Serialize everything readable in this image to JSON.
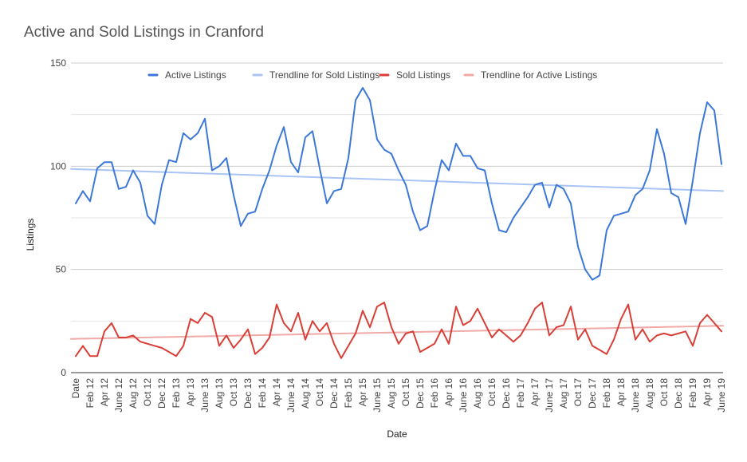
{
  "chart_data": {
    "type": "line",
    "title": "Active and Sold Listings in Cranford",
    "xlabel": "Date",
    "ylabel": "Listings",
    "ylim": [
      0,
      150
    ],
    "yticks": [
      0,
      50,
      100,
      150
    ],
    "grid": true,
    "legend_position": "top",
    "legend": [
      "Active Listings",
      "Trendline for Sold Listings",
      "Sold Listings",
      "Trendline for Active Listings"
    ],
    "x_tick_labels": [
      "Date",
      "Feb 12",
      "Apr 12",
      "June 12",
      "Aug 12",
      "Oct 12",
      "Dec 12",
      "Feb 13",
      "Apr 13",
      "June 13",
      "Aug 13",
      "Oct 13",
      "Dec 13",
      "Feb 14",
      "Apr 14",
      "June 14",
      "Aug 14",
      "Oct 14",
      "Dec 14",
      "Feb 15",
      "Apr 15",
      "June 15",
      "Aug 15",
      "Oct 15",
      "Dec 15",
      "Feb 16",
      "Apr 16",
      "June 16",
      "Aug 16",
      "Oct 16",
      "Dec 16",
      "Feb 17",
      "Apr 17",
      "June 17",
      "Aug 17",
      "Oct 17",
      "Dec 17",
      "Feb 18",
      "Apr 18",
      "June 18",
      "Aug 18",
      "Oct 18",
      "Dec 18",
      "Feb 19",
      "Apr 19",
      "June 19"
    ],
    "series": [
      {
        "name": "Active Listings",
        "color": "#3c78d8",
        "values": [
          82,
          88,
          83,
          99,
          102,
          102,
          89,
          90,
          98,
          92,
          76,
          72,
          91,
          103,
          102,
          116,
          113,
          116,
          123,
          98,
          100,
          104,
          86,
          71,
          77,
          78,
          89,
          98,
          110,
          119,
          102,
          97,
          114,
          117,
          99,
          82,
          88,
          89,
          104,
          132,
          138,
          132,
          113,
          108,
          106,
          98,
          91,
          78,
          69,
          71,
          88,
          103,
          98,
          111,
          105,
          105,
          99,
          98,
          82,
          69,
          68,
          75,
          80,
          85,
          91,
          92,
          80,
          91,
          89,
          82,
          61,
          50,
          45,
          47,
          69,
          76,
          77,
          78,
          86,
          89,
          98,
          118,
          106,
          87,
          85,
          72,
          93,
          116,
          131,
          127,
          101
        ]
      },
      {
        "name": "Sold Listings",
        "color": "#d93f36",
        "values": [
          8,
          13,
          8,
          8,
          20,
          24,
          17,
          17,
          18,
          15,
          14,
          13,
          12,
          10,
          8,
          13,
          26,
          24,
          29,
          27,
          13,
          18,
          12,
          16,
          21,
          9,
          12,
          17,
          33,
          24,
          20,
          29,
          16,
          25,
          20,
          24,
          14,
          7,
          13,
          19,
          30,
          22,
          32,
          34,
          22,
          14,
          19,
          20,
          10,
          12,
          14,
          21,
          14,
          32,
          23,
          25,
          31,
          24,
          17,
          21,
          18,
          15,
          18,
          24,
          31,
          34,
          18,
          22,
          23,
          32,
          16,
          21,
          13,
          11,
          9,
          16,
          26,
          33,
          16,
          21,
          15,
          18,
          19,
          18,
          19,
          20,
          13,
          24,
          28,
          24,
          20
        ]
      },
      {
        "name": "Trendline for Sold Listings",
        "color": "#a9c4f5",
        "values": [
          98.7,
          88.0
        ]
      },
      {
        "name": "Trendline for Active Listings",
        "color": "#f0a9a6",
        "values": [
          16.3,
          22.7
        ]
      }
    ]
  }
}
